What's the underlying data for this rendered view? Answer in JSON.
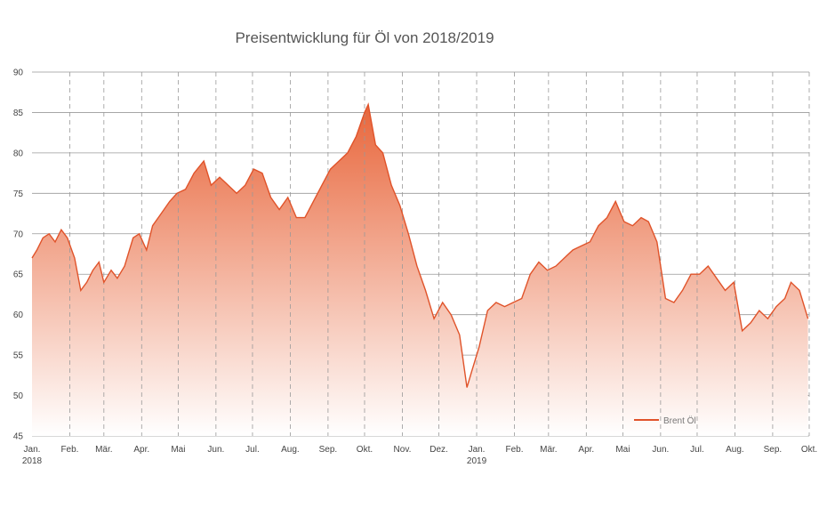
{
  "chart_data": {
    "type": "area",
    "title": "Preisentwicklung für Öl von 2018/2019",
    "xlabel": "",
    "ylabel": "",
    "ylim": [
      45,
      90
    ],
    "yticks": [
      45,
      50,
      55,
      60,
      65,
      70,
      75,
      80,
      85,
      90
    ],
    "ytick_labels": [
      "45",
      "50",
      "55",
      "60",
      "65",
      "70",
      "75",
      "80",
      "85",
      "90"
    ],
    "grid": {
      "horizontal": true,
      "vertical_dashed": true
    },
    "legend": {
      "position": "bottom-right"
    },
    "colors": {
      "line": "#e0532a",
      "fill_top": "#e8653a",
      "fill_bottom": "#ffffff",
      "grid": "#999999"
    },
    "xticks": [
      {
        "label": "Jan.",
        "sub": "2018"
      },
      {
        "label": "Feb.",
        "sub": ""
      },
      {
        "label": "Mär.",
        "sub": ""
      },
      {
        "label": "Apr.",
        "sub": ""
      },
      {
        "label": "Mai",
        "sub": ""
      },
      {
        "label": "Jun.",
        "sub": ""
      },
      {
        "label": "Jul.",
        "sub": ""
      },
      {
        "label": "Aug.",
        "sub": ""
      },
      {
        "label": "Sep.",
        "sub": ""
      },
      {
        "label": "Okt.",
        "sub": ""
      },
      {
        "label": "Nov.",
        "sub": ""
      },
      {
        "label": "Dez.",
        "sub": ""
      },
      {
        "label": "Jan.",
        "sub": "2019"
      },
      {
        "label": "Feb.",
        "sub": ""
      },
      {
        "label": "Mär.",
        "sub": ""
      },
      {
        "label": "Apr.",
        "sub": ""
      },
      {
        "label": "Mai",
        "sub": ""
      },
      {
        "label": "Jun.",
        "sub": ""
      },
      {
        "label": "Jul.",
        "sub": ""
      },
      {
        "label": "Aug.",
        "sub": ""
      },
      {
        "label": "Sep.",
        "sub": ""
      },
      {
        "label": "Okt.",
        "sub": ""
      }
    ],
    "series": [
      {
        "name": "Brent Öl",
        "x": [
          "2018-01-01",
          "2018-01-05",
          "2018-01-10",
          "2018-01-15",
          "2018-01-20",
          "2018-01-25",
          "2018-01-30",
          "2018-02-05",
          "2018-02-10",
          "2018-02-15",
          "2018-02-20",
          "2018-02-25",
          "2018-03-01",
          "2018-03-07",
          "2018-03-12",
          "2018-03-18",
          "2018-03-25",
          "2018-03-30",
          "2018-04-05",
          "2018-04-10",
          "2018-04-17",
          "2018-04-24",
          "2018-04-30",
          "2018-05-07",
          "2018-05-14",
          "2018-05-22",
          "2018-05-28",
          "2018-06-04",
          "2018-06-11",
          "2018-06-18",
          "2018-06-25",
          "2018-07-02",
          "2018-07-09",
          "2018-07-16",
          "2018-07-23",
          "2018-07-30",
          "2018-08-06",
          "2018-08-13",
          "2018-08-20",
          "2018-08-27",
          "2018-09-03",
          "2018-09-10",
          "2018-09-17",
          "2018-09-24",
          "2018-10-01",
          "2018-10-04",
          "2018-10-10",
          "2018-10-16",
          "2018-10-23",
          "2018-10-30",
          "2018-11-06",
          "2018-11-13",
          "2018-11-20",
          "2018-11-27",
          "2018-12-04",
          "2018-12-11",
          "2018-12-18",
          "2018-12-24",
          "2018-12-28",
          "2019-01-03",
          "2019-01-10",
          "2019-01-17",
          "2019-01-24",
          "2019-01-31",
          "2019-02-07",
          "2019-02-14",
          "2019-02-21",
          "2019-02-28",
          "2019-03-07",
          "2019-03-14",
          "2019-03-21",
          "2019-03-28",
          "2019-04-04",
          "2019-04-11",
          "2019-04-18",
          "2019-04-25",
          "2019-05-02",
          "2019-05-09",
          "2019-05-16",
          "2019-05-22",
          "2019-05-29",
          "2019-06-05",
          "2019-06-12",
          "2019-06-19",
          "2019-06-26",
          "2019-07-03",
          "2019-07-10",
          "2019-07-17",
          "2019-07-24",
          "2019-07-31",
          "2019-08-07",
          "2019-08-14",
          "2019-08-21",
          "2019-08-28",
          "2019-09-04",
          "2019-09-11",
          "2019-09-16",
          "2019-09-23",
          "2019-09-30"
        ],
        "values": [
          67.0,
          68.0,
          69.5,
          70.0,
          69.0,
          70.5,
          69.5,
          67.0,
          63.0,
          64.0,
          65.5,
          66.5,
          64.0,
          65.5,
          64.5,
          66.0,
          69.5,
          70.0,
          68.0,
          71.0,
          72.5,
          74.0,
          75.0,
          75.5,
          77.5,
          79.0,
          76.0,
          77.0,
          76.0,
          75.0,
          76.0,
          78.0,
          77.5,
          74.5,
          73.0,
          74.5,
          72.0,
          72.0,
          74.0,
          76.0,
          78.0,
          79.0,
          80.0,
          82.0,
          85.0,
          86.0,
          81.0,
          80.0,
          76.0,
          73.5,
          70.0,
          66.0,
          63.0,
          59.5,
          61.5,
          60.0,
          57.5,
          51.0,
          53.0,
          56.0,
          60.5,
          61.5,
          61.0,
          61.5,
          62.0,
          65.0,
          66.5,
          65.5,
          66.0,
          67.0,
          68.0,
          68.5,
          69.0,
          71.0,
          72.0,
          74.0,
          71.5,
          71.0,
          72.0,
          71.5,
          69.0,
          62.0,
          61.5,
          63.0,
          65.0,
          65.0,
          66.0,
          64.5,
          63.0,
          64.0,
          58.0,
          59.0,
          60.5,
          59.5,
          61.0,
          62.0,
          64.0,
          63.0,
          59.5
        ]
      }
    ]
  }
}
